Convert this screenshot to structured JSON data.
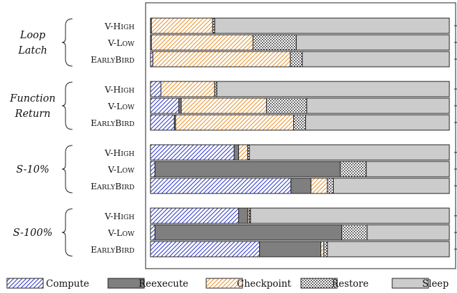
{
  "chart_data": {
    "type": "bar",
    "orientation": "horizontal",
    "stacked": true,
    "normalized": true,
    "xlim": [
      0,
      1
    ],
    "legend_position": "bottom",
    "legend": [
      {
        "key": "compute",
        "label": "Compute",
        "pattern": "blue-diagonal-hatch"
      },
      {
        "key": "reexecute",
        "label": "Reexecute",
        "color": "#7f7f7f"
      },
      {
        "key": "checkpoint",
        "label": "Checkpoint",
        "pattern": "orange-diagonal-hatch"
      },
      {
        "key": "restore",
        "label": "Restore",
        "pattern": "dotted-checker"
      },
      {
        "key": "sleep",
        "label": "Sleep",
        "color": "#cccccc"
      }
    ],
    "groups": [
      {
        "label_lines": [
          "Loop",
          "Latch"
        ],
        "bars": [
          {
            "label": "V-High",
            "values": [
              0.003,
              0,
              0.205,
              0.007,
              0.785
            ]
          },
          {
            "label": "V-Low",
            "values": [
              0.003,
              0,
              0.34,
              0.145,
              0.512
            ]
          },
          {
            "label": "EarlyBird",
            "values": [
              0.008,
              0,
              0.46,
              0.04,
              0.492
            ]
          }
        ]
      },
      {
        "label_lines": [
          "Function",
          "Return"
        ],
        "bars": [
          {
            "label": "V-High",
            "values": [
              0.035,
              0,
              0.18,
              0.007,
              0.778
            ]
          },
          {
            "label": "V-Low",
            "values": [
              0.095,
              0.008,
              0.285,
              0.135,
              0.477
            ]
          },
          {
            "label": "EarlyBird",
            "values": [
              0.08,
              0.004,
              0.395,
              0.04,
              0.481
            ]
          }
        ]
      },
      {
        "label_lines": [
          "S-10%"
        ],
        "bars": [
          {
            "label": "V-High",
            "values": [
              0.28,
              0.015,
              0.03,
              0.006,
              0.669
            ]
          },
          {
            "label": "V-Low",
            "values": [
              0.015,
              0.62,
              0,
              0.087,
              0.278
            ]
          },
          {
            "label": "EarlyBird",
            "values": [
              0.47,
              0.067,
              0.055,
              0.02,
              0.388
            ]
          }
        ]
      },
      {
        "label_lines": [
          "S-100%"
        ],
        "bars": [
          {
            "label": "V-High",
            "values": [
              0.295,
              0.03,
              0.005,
              0.005,
              0.665
            ]
          },
          {
            "label": "V-Low",
            "values": [
              0.015,
              0.625,
              0,
              0.085,
              0.275
            ]
          },
          {
            "label": "EarlyBird",
            "values": [
              0.365,
              0.205,
              0.01,
              0.012,
              0.408
            ]
          }
        ]
      }
    ]
  }
}
